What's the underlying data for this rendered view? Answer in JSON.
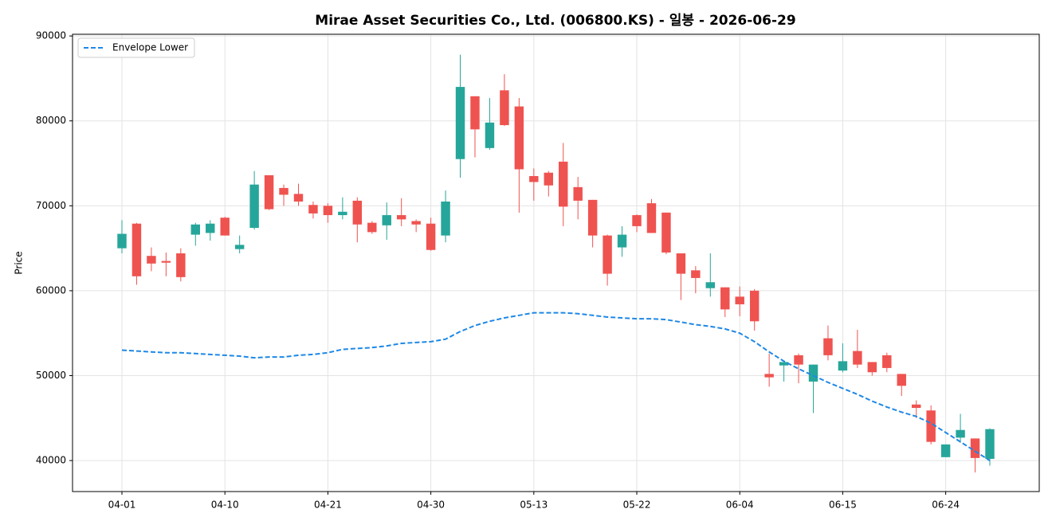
{
  "chart_data": {
    "type": "candlestick",
    "title": "Mirae Asset Securities Co., Ltd. (006800.KS) - 일봉 - 2026-06-29",
    "y_label": "Price",
    "categories": [
      "04-01",
      null,
      null,
      null,
      null,
      null,
      null,
      "04-10",
      null,
      null,
      null,
      null,
      null,
      null,
      "04-21",
      null,
      null,
      null,
      null,
      null,
      null,
      "04-30",
      null,
      null,
      null,
      null,
      null,
      null,
      "05-13",
      null,
      null,
      null,
      null,
      null,
      null,
      "05-22",
      null,
      null,
      null,
      null,
      null,
      null,
      "06-04",
      null,
      null,
      null,
      null,
      null,
      null,
      "06-15",
      null,
      null,
      null,
      null,
      null,
      null,
      "06-24",
      null,
      null,
      null
    ],
    "open": [
      65000,
      67900,
      64100,
      63500,
      64400,
      66600,
      66800,
      68600,
      64900,
      67400,
      73600,
      72100,
      71400,
      70100,
      70000,
      68900,
      70600,
      68000,
      67700,
      68900,
      68200,
      67900,
      66500,
      75500,
      82900,
      76800,
      83600,
      81700,
      73500,
      73900,
      75200,
      72200,
      70700,
      66500,
      65100,
      68900,
      70300,
      69200,
      64400,
      62400,
      60300,
      60400,
      59300,
      60000,
      50200,
      51200,
      52400,
      49300,
      54400,
      50600,
      52900,
      51600,
      52400,
      50200,
      46600,
      45900,
      40400,
      42700,
      42600,
      40200
    ],
    "high": [
      68300,
      68000,
      65100,
      64500,
      65000,
      68000,
      68300,
      68700,
      66500,
      74100,
      73600,
      72500,
      72600,
      70500,
      70300,
      71000,
      71000,
      68200,
      70400,
      70900,
      68400,
      68600,
      71800,
      87800,
      82900,
      82700,
      85500,
      82700,
      74400,
      74100,
      77400,
      73400,
      70700,
      66600,
      67600,
      69000,
      70800,
      69200,
      64400,
      62900,
      64400,
      60400,
      60500,
      60200,
      52600,
      51600,
      52600,
      51300,
      55900,
      53800,
      55400,
      51600,
      52700,
      50200,
      47100,
      46500,
      41900,
      45500,
      42600,
      43800
    ],
    "low": [
      64400,
      60700,
      62300,
      61700,
      61100,
      65300,
      65900,
      66500,
      64400,
      67200,
      69500,
      70000,
      70000,
      68500,
      68000,
      68400,
      65700,
      66700,
      66000,
      67600,
      66900,
      64700,
      65700,
      73300,
      75700,
      76600,
      79400,
      69200,
      70600,
      71100,
      67600,
      68400,
      65100,
      60600,
      64000,
      66900,
      66800,
      64300,
      58900,
      59700,
      59300,
      56900,
      57000,
      55300,
      48700,
      49300,
      49100,
      45600,
      51800,
      50400,
      50900,
      50000,
      50400,
      47600,
      45000,
      41900,
      40400,
      42100,
      38600,
      39400
    ],
    "close": [
      66700,
      61700,
      63200,
      63300,
      61600,
      67800,
      67900,
      66500,
      65400,
      72500,
      69600,
      71300,
      70500,
      69100,
      68900,
      69300,
      67800,
      66900,
      68900,
      68400,
      67800,
      64800,
      70500,
      84000,
      79000,
      79800,
      79500,
      74300,
      72800,
      72400,
      69900,
      70600,
      66500,
      62000,
      66600,
      67600,
      66800,
      64500,
      62000,
      61500,
      61000,
      57800,
      58400,
      56400,
      49800,
      51600,
      51300,
      51300,
      52400,
      51700,
      51300,
      50400,
      50900,
      48800,
      46200,
      42200,
      41900,
      43600,
      40300,
      43700
    ],
    "up_color": "#26a69a",
    "down_color": "#ef5350",
    "series": [
      {
        "name": "Envelope Lower",
        "color": "#1e88e5",
        "style": "dashed",
        "values": [
          53000,
          52900,
          52800,
          52700,
          52700,
          52600,
          52500,
          52400,
          52300,
          52100,
          52200,
          52200,
          52400,
          52500,
          52700,
          53100,
          53200,
          53300,
          53500,
          53800,
          53900,
          54000,
          54300,
          55200,
          55900,
          56400,
          56800,
          57100,
          57400,
          57400,
          57400,
          57300,
          57100,
          56900,
          56800,
          56700,
          56700,
          56600,
          56300,
          56000,
          55800,
          55500,
          55000,
          54000,
          52800,
          51700,
          50800,
          50000,
          49200,
          48500,
          47800,
          47000,
          46300,
          45700,
          45200,
          44400,
          43300,
          42200,
          41100,
          40000
        ]
      }
    ],
    "ylim": [
      36350,
      90200
    ],
    "yticks": [
      40000,
      50000,
      60000,
      70000,
      80000,
      90000
    ],
    "grid": true,
    "legend": "upper left"
  }
}
